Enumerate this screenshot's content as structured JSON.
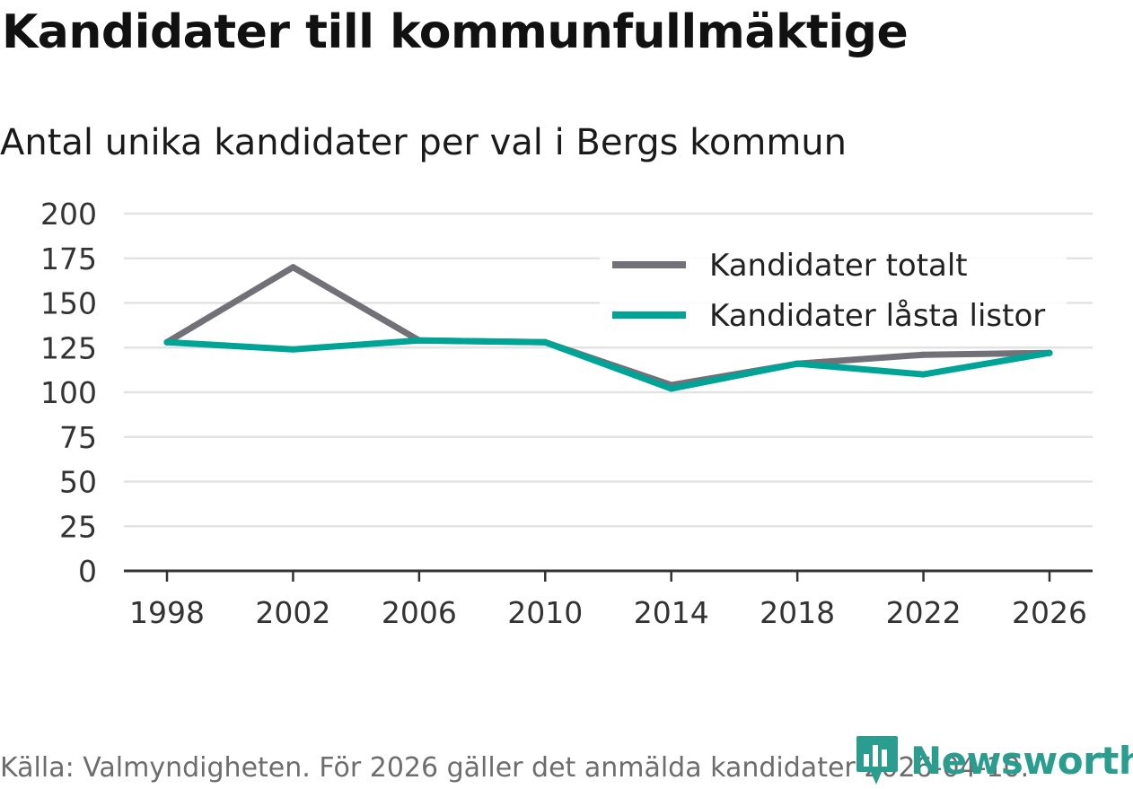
{
  "header": {
    "title": "Kandidater till kommunfullmäktige",
    "subtitle": "Antal unika kandidater per val i Bergs kommun"
  },
  "footer": {
    "source": "Källa: Valmyndigheten. För 2026 gäller det anmälda kandidater 2026-04-10.",
    "brand": "Newsworthy",
    "brand_icon": "bar-chart-speech-bubble-icon"
  },
  "colors": {
    "totalt": "#737178",
    "lasta": "#00a497",
    "grid": "#e3e3e3",
    "axis": "#333333",
    "brand": "#2a9d8f"
  },
  "chart_data": {
    "type": "line",
    "x": [
      "1998",
      "2002",
      "2006",
      "2010",
      "2014",
      "2018",
      "2022",
      "2026"
    ],
    "series": [
      {
        "name": "Kandidater totalt",
        "color": "#737178",
        "values": [
          128,
          170,
          129,
          128,
          104,
          116,
          121,
          122
        ]
      },
      {
        "name": "Kandidater låsta listor",
        "color": "#00a497",
        "values": [
          128,
          124,
          129,
          128,
          102,
          116,
          110,
          122
        ]
      }
    ],
    "yticks": [
      "0",
      "25",
      "50",
      "75",
      "100",
      "125",
      "150",
      "175",
      "200"
    ],
    "ylim": [
      0,
      200
    ],
    "grid": true,
    "legend": "top-right",
    "xlabel": "",
    "ylabel": ""
  }
}
